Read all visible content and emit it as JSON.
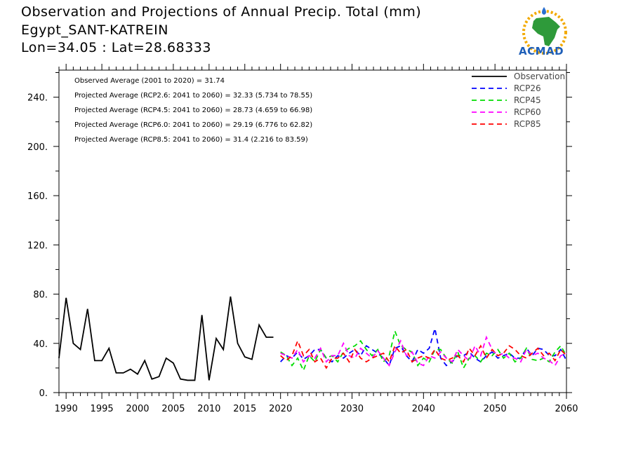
{
  "header": {
    "title_line1": "Observation and Projections of Annual Precip. Total (mm)",
    "title_line2": "Egypt_SANT-KATREIN",
    "title_line3": "Lon=34.05 : Lat=28.68333"
  },
  "logo": {
    "text": "ACMAD",
    "icon": "africa-map-logo-icon"
  },
  "colors": {
    "observation": "#000000",
    "rcp26": "#0000ff",
    "rcp45": "#00dd00",
    "rcp60": "#ff00ff",
    "rcp85": "#ff0000"
  },
  "chart_data": {
    "type": "line",
    "title": "Observation and Projections of Annual Precip. Total (mm)",
    "xlim": [
      1989,
      2060
    ],
    "ylim": [
      0,
      262
    ],
    "x_ticks": [
      1990,
      1995,
      2000,
      2005,
      2010,
      2015,
      2020,
      2030,
      2040,
      2050,
      2060
    ],
    "y_ticks": [
      0,
      40,
      80,
      120,
      160,
      200,
      240
    ],
    "y_tick_labels": [
      "0.",
      "40.",
      "80.",
      "120.",
      "160.",
      "200.",
      "240."
    ],
    "annotations": [
      "Observed Average (2001 to 2020) = 31.74",
      "Projected Average (RCP2.6: 2041 to 2060) = 32.33 (5.734 to 78.55)",
      "Projected Average (RCP4.5: 2041 to 2060) = 28.73 (4.659 to 66.98)",
      "Projected Average (RCP6.0: 2041 to 2060) = 29.19 (6.776 to 62.82)",
      "Projected Average (RCP8.5: 2041 to 2060) = 31.4 (2.216 to 83.59)"
    ],
    "legend_position": "top-right",
    "observation": {
      "name": "Observation",
      "x": [
        1989,
        1990,
        1991,
        1992,
        1993,
        1994,
        1995,
        1996,
        1997,
        1998,
        1999,
        2000,
        2001,
        2002,
        2003,
        2004,
        2005,
        2006,
        2007,
        2008,
        2009,
        2010,
        2011,
        2012,
        2013,
        2014,
        2015,
        2016,
        2017,
        2018,
        2019
      ],
      "y": [
        28,
        77,
        40,
        35,
        68,
        26,
        26,
        36,
        16,
        16,
        19,
        15,
        26,
        11,
        13,
        28,
        24,
        11,
        10,
        10,
        63,
        10,
        44,
        35,
        78,
        40,
        29,
        27,
        55,
        45,
        45
      ]
    },
    "projection_x_start": 2020,
    "projections": [
      {
        "name": "RCP26",
        "y": [
          25,
          30,
          28,
          33,
          27,
          30,
          35,
          35,
          28,
          25,
          30,
          28,
          32,
          35,
          30,
          38,
          35,
          32,
          28,
          22,
          36,
          38,
          30,
          25,
          35,
          32,
          36,
          52,
          28,
          22,
          25,
          30,
          30,
          33,
          28,
          25,
          30,
          33,
          28,
          30,
          32,
          28,
          28,
          36,
          30,
          36,
          35,
          30,
          30,
          35,
          26
        ]
      },
      {
        "name": "RCP45",
        "y": [
          33,
          30,
          22,
          28,
          18,
          30,
          25,
          35,
          28,
          30,
          25,
          33,
          36,
          38,
          42,
          35,
          30,
          35,
          25,
          30,
          50,
          38,
          35,
          33,
          22,
          28,
          25,
          35,
          35,
          28,
          24,
          33,
          20,
          28,
          30,
          25,
          32,
          30,
          35,
          28,
          32,
          25,
          28,
          36,
          27,
          26,
          28,
          25,
          33,
          38,
          30
        ]
      },
      {
        "name": "RCP60",
        "y": [
          32,
          30,
          28,
          35,
          25,
          30,
          28,
          36,
          25,
          30,
          30,
          40,
          30,
          28,
          36,
          32,
          28,
          34,
          28,
          22,
          33,
          42,
          30,
          33,
          24,
          22,
          30,
          28,
          33,
          28,
          25,
          35,
          30,
          26,
          38,
          30,
          45,
          35,
          30,
          32,
          28,
          28,
          25,
          35,
          30,
          32,
          28,
          26,
          22,
          30,
          32
        ]
      },
      {
        "name": "RCP85",
        "y": [
          30,
          26,
          30,
          42,
          30,
          35,
          25,
          28,
          20,
          28,
          28,
          32,
          25,
          35,
          28,
          25,
          28,
          30,
          32,
          25,
          38,
          32,
          35,
          25,
          28,
          30,
          28,
          35,
          28,
          26,
          28,
          30,
          25,
          36,
          30,
          38,
          28,
          35,
          30,
          32,
          38,
          35,
          30,
          28,
          32,
          36,
          30,
          32,
          26,
          35,
          30
        ]
      }
    ]
  }
}
